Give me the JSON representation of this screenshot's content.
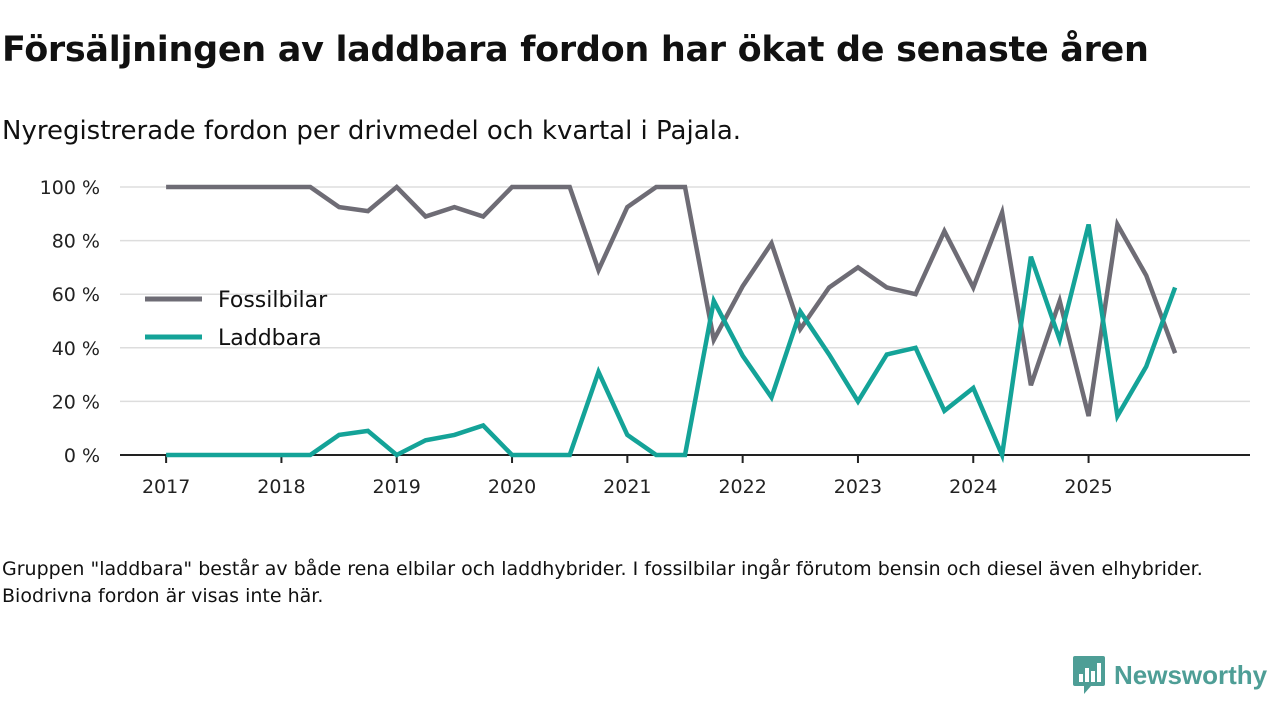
{
  "title": "Försäljningen av laddbara fordon har ökat de senaste åren",
  "subtitle": "Nyregistrerade fordon per drivmedel och kvartal i Pajala.",
  "footnote": "Gruppen \"laddbara\" består av både rena elbilar och laddhybrider. I fossilbilar ingår förutom bensin och diesel även elhybrider. Biodrivna fordon är visas inte här.",
  "brand": {
    "name": "Newsworthy",
    "color": "#4e9e96"
  },
  "colors": {
    "fossil": "#6e6c75",
    "laddbara": "#14a398",
    "grid": "#dddddd",
    "axis": "#222222"
  },
  "chart_data": {
    "type": "line",
    "title": "Försäljningen av laddbara fordon har ökat de senaste åren",
    "xlabel": "",
    "ylabel": "",
    "ylim": [
      0,
      100
    ],
    "yticks": [
      0,
      20,
      40,
      60,
      80,
      100
    ],
    "ytick_labels": [
      "0 %",
      "20 %",
      "40 %",
      "60 %",
      "80 %",
      "100 %"
    ],
    "xlim": [
      2016.6,
      2026.4
    ],
    "xticks": [
      "2017",
      "2018",
      "2019",
      "2020",
      "2021",
      "2022",
      "2023",
      "2024",
      "2025"
    ],
    "grid": true,
    "legend_position": "left",
    "x": [
      2017.0,
      2017.25,
      2017.5,
      2017.75,
      2018.0,
      2018.25,
      2018.5,
      2018.75,
      2019.0,
      2019.25,
      2019.5,
      2019.75,
      2020.0,
      2020.25,
      2020.5,
      2020.75,
      2021.0,
      2021.25,
      2021.5,
      2021.75,
      2022.0,
      2022.25,
      2022.5,
      2022.75,
      2023.0,
      2023.25,
      2023.5,
      2023.75,
      2024.0,
      2024.25,
      2024.5,
      2024.75,
      2025.0,
      2025.25,
      2025.5,
      2025.75
    ],
    "series": [
      {
        "name": "Fossilbilar",
        "values": [
          100,
          100,
          100,
          100,
          100,
          100,
          92.5,
          91,
          100,
          89,
          92.5,
          89,
          100,
          100,
          100,
          69,
          92.5,
          100,
          100,
          43,
          63,
          79,
          47,
          62.5,
          70,
          62.5,
          60,
          83.5,
          62.5,
          90.5,
          26,
          57.5,
          14.5,
          86,
          67,
          38
        ]
      },
      {
        "name": "Laddbara",
        "values": [
          0,
          0,
          0,
          0,
          0,
          0,
          7.5,
          9,
          0,
          5.5,
          7.5,
          11,
          0,
          0,
          0,
          31,
          7.5,
          0,
          0,
          57.5,
          37,
          21.5,
          53.5,
          37.5,
          20,
          37.5,
          40,
          16.5,
          25,
          0,
          74,
          43,
          86,
          14.5,
          33,
          62.5
        ]
      }
    ]
  }
}
